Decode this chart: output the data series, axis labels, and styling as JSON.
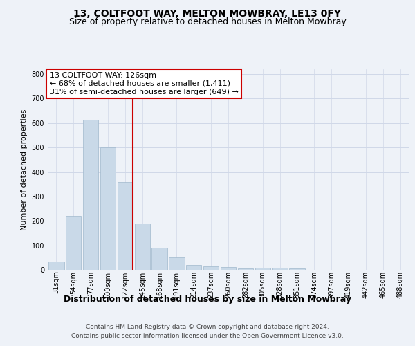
{
  "title": "13, COLTFOOT WAY, MELTON MOWBRAY, LE13 0FY",
  "subtitle": "Size of property relative to detached houses in Melton Mowbray",
  "xlabel": "Distribution of detached houses by size in Melton Mowbray",
  "ylabel": "Number of detached properties",
  "categories": [
    "31sqm",
    "54sqm",
    "77sqm",
    "100sqm",
    "122sqm",
    "145sqm",
    "168sqm",
    "191sqm",
    "214sqm",
    "237sqm",
    "260sqm",
    "282sqm",
    "305sqm",
    "328sqm",
    "351sqm",
    "374sqm",
    "397sqm",
    "419sqm",
    "442sqm",
    "465sqm",
    "488sqm"
  ],
  "values": [
    35,
    220,
    615,
    500,
    360,
    190,
    90,
    50,
    20,
    15,
    10,
    5,
    8,
    8,
    5,
    0,
    0,
    0,
    0,
    0,
    0
  ],
  "bar_color": "#c9d9e8",
  "bar_edge_color": "#a0b8cc",
  "red_line_index": 4,
  "red_line_color": "#cc0000",
  "annotation_text": "13 COLTFOOT WAY: 126sqm\n← 68% of detached houses are smaller (1,411)\n31% of semi-detached houses are larger (649) →",
  "annotation_box_color": "#ffffff",
  "annotation_box_edge": "#cc0000",
  "ylim": [
    0,
    820
  ],
  "yticks": [
    0,
    100,
    200,
    300,
    400,
    500,
    600,
    700,
    800
  ],
  "footer1": "Contains HM Land Registry data © Crown copyright and database right 2024.",
  "footer2": "Contains public sector information licensed under the Open Government Licence v3.0.",
  "title_fontsize": 10,
  "subtitle_fontsize": 9,
  "xlabel_fontsize": 9,
  "ylabel_fontsize": 8,
  "tick_fontsize": 7,
  "annotation_fontsize": 8,
  "footer_fontsize": 6.5,
  "grid_color": "#d0d8e8",
  "background_color": "#eef2f8"
}
